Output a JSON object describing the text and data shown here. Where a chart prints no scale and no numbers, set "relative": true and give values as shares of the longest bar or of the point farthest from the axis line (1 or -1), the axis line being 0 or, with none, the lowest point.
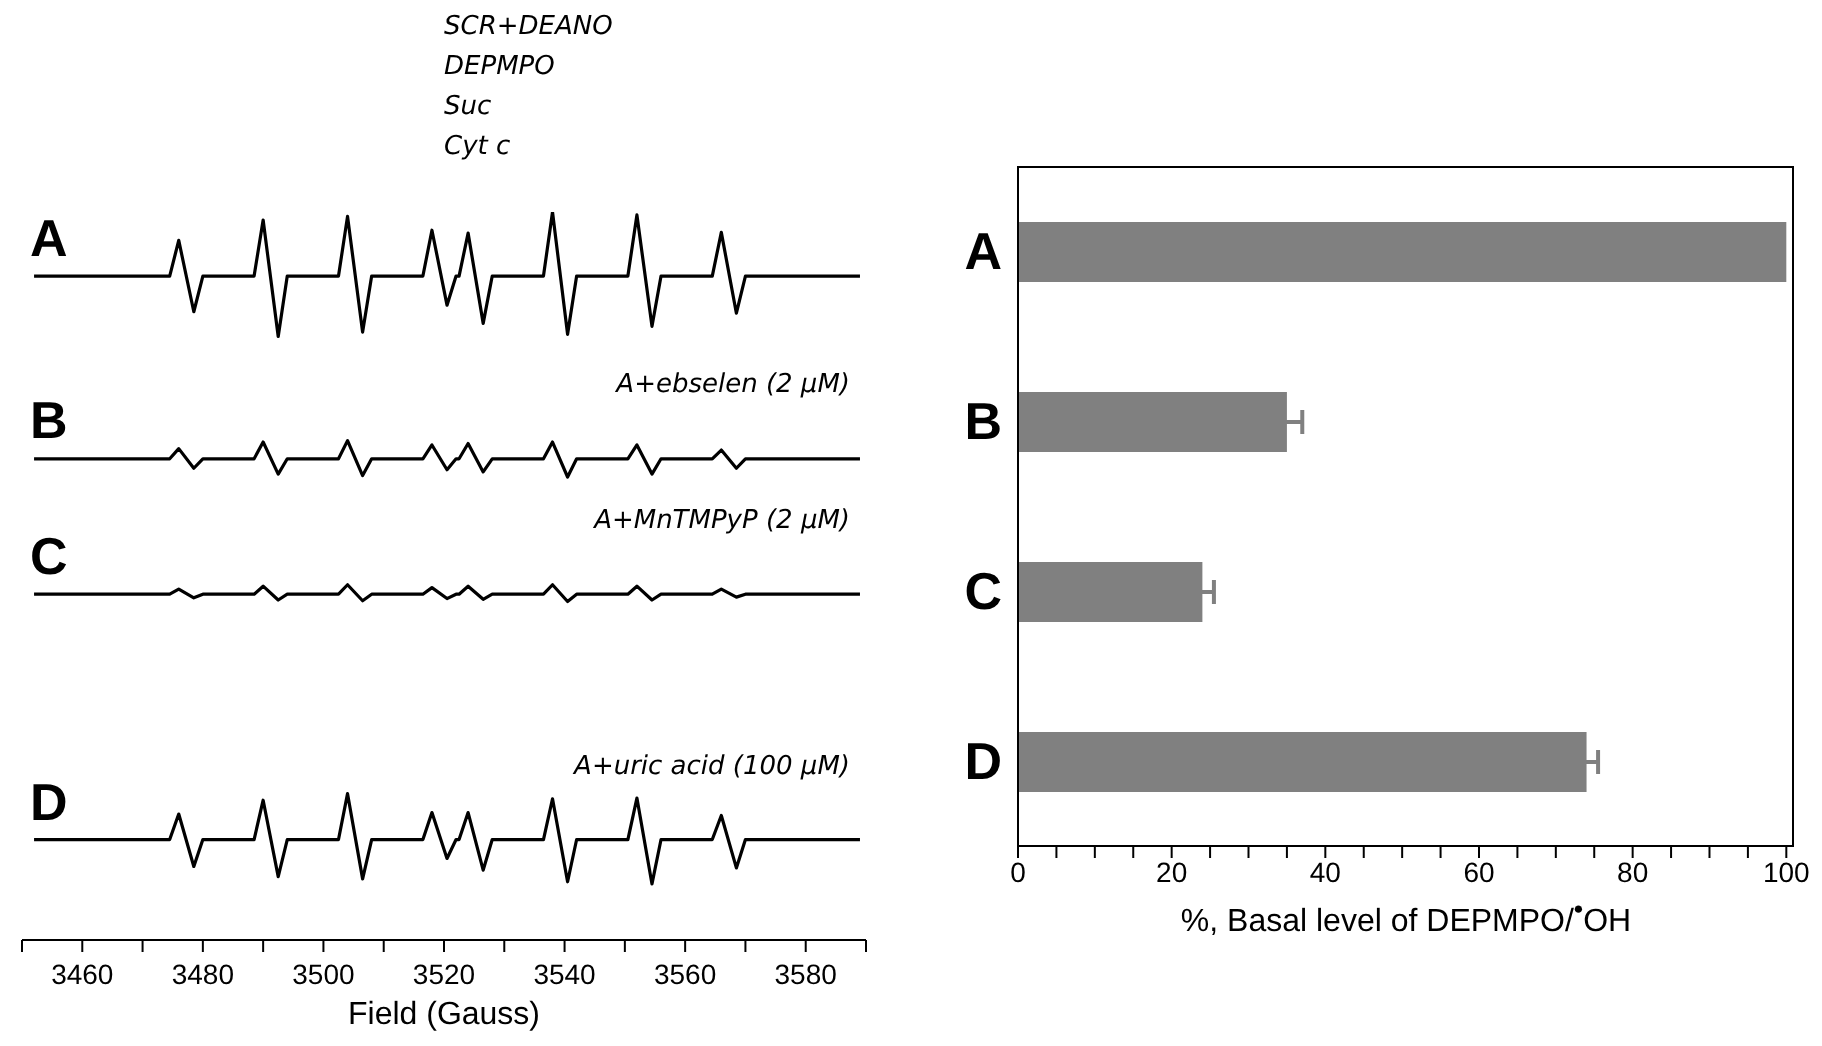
{
  "chart_data": [
    {
      "type": "line",
      "relative": true,
      "xlabel": "Field (Gauss)",
      "xlim": [
        3450,
        3590
      ],
      "xticks": [
        {
          "value": 3450,
          "label": null
        },
        3460,
        {
          "value": 3470,
          "label": null
        },
        3480,
        {
          "value": 3490,
          "label": null
        },
        3500,
        {
          "value": 3510,
          "label": null
        },
        3520,
        {
          "value": 3530,
          "label": null
        },
        3540,
        {
          "value": 3550,
          "label": null
        },
        3560,
        {
          "value": 3570,
          "label": null
        },
        3580,
        {
          "value": 3590,
          "label": null
        }
      ],
      "x": [
        3452,
        3474.5,
        3476,
        3478.5,
        3480,
        3488.5,
        3490,
        3492.5,
        3494,
        3502.5,
        3504,
        3506.5,
        3508,
        3516.5,
        3518,
        3520.5,
        3522,
        3522.5,
        3524,
        3526.5,
        3528,
        3536.5,
        3538,
        3540.5,
        3542,
        3550.5,
        3552,
        3554.5,
        3556,
        3564.5,
        3566,
        3568.5,
        3570,
        3589
      ],
      "annotations": [
        "SCR+DEANO",
        "DEPMPO",
        "Suc",
        "Cyt c",
        "A+ebselen (2 μM)",
        "A+MnTMPyP (2 μM)",
        "A+uric acid (100 μM)"
      ],
      "series": [
        {
          "name": "A",
          "color": "#000000",
          "values": [
            0.912,
            0.912,
            0.961,
            0.863,
            0.912,
            0.912,
            0.989,
            0.829,
            0.912,
            0.912,
            0.994,
            0.835,
            0.912,
            0.912,
            0.975,
            0.872,
            0.912,
            0.912,
            0.971,
            0.847,
            0.912,
            0.912,
            1.0,
            0.832,
            0.912,
            0.912,
            0.996,
            0.843,
            0.912,
            0.912,
            0.972,
            0.861,
            0.912,
            0.912
          ]
        },
        {
          "name": "B",
          "color": "#000000",
          "values": [
            0.661,
            0.661,
            0.675,
            0.648,
            0.661,
            0.661,
            0.684,
            0.64,
            0.661,
            0.661,
            0.686,
            0.638,
            0.661,
            0.661,
            0.68,
            0.646,
            0.661,
            0.661,
            0.682,
            0.643,
            0.661,
            0.661,
            0.684,
            0.636,
            0.661,
            0.661,
            0.68,
            0.64,
            0.661,
            0.661,
            0.673,
            0.648,
            0.661,
            0.661
          ]
        },
        {
          "name": "C",
          "color": "#000000",
          "values": [
            0.475,
            0.475,
            0.482,
            0.47,
            0.475,
            0.475,
            0.486,
            0.467,
            0.475,
            0.475,
            0.488,
            0.466,
            0.475,
            0.475,
            0.484,
            0.469,
            0.475,
            0.475,
            0.486,
            0.468,
            0.475,
            0.475,
            0.488,
            0.465,
            0.475,
            0.475,
            0.486,
            0.467,
            0.475,
            0.475,
            0.482,
            0.471,
            0.475,
            0.475
          ]
        },
        {
          "name": "D",
          "color": "#000000",
          "values": [
            0.138,
            0.138,
            0.173,
            0.101,
            0.138,
            0.138,
            0.192,
            0.087,
            0.138,
            0.138,
            0.201,
            0.084,
            0.138,
            0.138,
            0.175,
            0.112,
            0.138,
            0.138,
            0.175,
            0.096,
            0.138,
            0.138,
            0.194,
            0.08,
            0.138,
            0.138,
            0.195,
            0.077,
            0.138,
            0.138,
            0.171,
            0.099,
            0.138,
            0.138
          ]
        }
      ]
    },
    {
      "type": "bar",
      "orientation": "horizontal",
      "categories": [
        "A",
        "B",
        "C",
        "D"
      ],
      "values": [
        100,
        35,
        24,
        74
      ],
      "errors": [
        null,
        2,
        1.5,
        1.5
      ],
      "color": "#808080",
      "xlabel": "%, Basal level of DEPMPO/$^{•}$OH",
      "xlim": [
        0,
        101
      ],
      "xticks": [
        0,
        {
          "value": 5,
          "label": null
        },
        {
          "value": 10,
          "label": null
        },
        {
          "value": 15,
          "label": null
        },
        20,
        {
          "value": 25,
          "label": null
        },
        {
          "value": 30,
          "label": null
        },
        {
          "value": 35,
          "label": null
        },
        40,
        {
          "value": 45,
          "label": null
        },
        {
          "value": 50,
          "label": null
        },
        {
          "value": 55,
          "label": null
        },
        60,
        {
          "value": 65,
          "label": null
        },
        {
          "value": 70,
          "label": null
        },
        {
          "value": 75,
          "label": null
        },
        80,
        {
          "value": 85,
          "label": null
        },
        {
          "value": 90,
          "label": null
        },
        {
          "value": 95,
          "label": null
        },
        100
      ]
    }
  ]
}
